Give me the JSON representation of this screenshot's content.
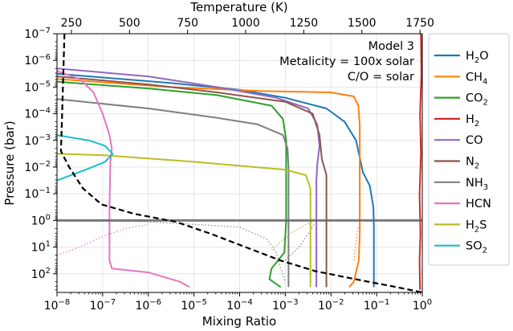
{
  "chart_data": {
    "type": "line",
    "annotation": {
      "lines": [
        "Model 3",
        "Metalicity = 100x solar",
        "C/O = solar"
      ]
    },
    "xlabel": "Mixing Ratio",
    "ylabel": "Pressure (bar)",
    "top_xlabel": "Temperature (K)",
    "xscale": "log",
    "yscale": "log",
    "yinverted": true,
    "xlim": [
      1e-08,
      1
    ],
    "ylim": [
      1e-07,
      500
    ],
    "top_xlim": [
      188,
      1760
    ],
    "x_ticks": [
      {
        "value": -8,
        "label": "10",
        "exp": "−8"
      },
      {
        "value": -7,
        "label": "10",
        "exp": "−7"
      },
      {
        "value": -6,
        "label": "10",
        "exp": "−6"
      },
      {
        "value": -5,
        "label": "10",
        "exp": "−5"
      },
      {
        "value": -4,
        "label": "10",
        "exp": "−4"
      },
      {
        "value": -3,
        "label": "10",
        "exp": "−3"
      },
      {
        "value": -2,
        "label": "10",
        "exp": "−2"
      },
      {
        "value": -1,
        "label": "10",
        "exp": "−1"
      },
      {
        "value": 0,
        "label": "10",
        "exp": "0"
      }
    ],
    "y_ticks": [
      {
        "value": -7,
        "label": "10",
        "exp": "−7"
      },
      {
        "value": -6,
        "label": "10",
        "exp": "−6"
      },
      {
        "value": -5,
        "label": "10",
        "exp": "−5"
      },
      {
        "value": -4,
        "label": "10",
        "exp": "−4"
      },
      {
        "value": -3,
        "label": "10",
        "exp": "−3"
      },
      {
        "value": -2,
        "label": "10",
        "exp": "−2"
      },
      {
        "value": -1,
        "label": "10",
        "exp": "−1"
      },
      {
        "value": 0,
        "label": "10",
        "exp": "0"
      },
      {
        "value": 1,
        "label": "10",
        "exp": "1"
      },
      {
        "value": 2,
        "label": "10",
        "exp": "2"
      }
    ],
    "top_ticks": [
      "250",
      "500",
      "750",
      "1000",
      "1250",
      "1500",
      "1750"
    ],
    "top_tick_values": [
      250,
      500,
      750,
      1000,
      1250,
      1500,
      1750
    ],
    "reference_line_pressure_log": 0,
    "tp_profile": {
      "name": "Temperature profile",
      "style": "dashed",
      "color": "#000000",
      "points": [
        [
          220,
          -7
        ],
        [
          210,
          -4
        ],
        [
          205,
          -2.6
        ],
        [
          240,
          -2
        ],
        [
          300,
          -1.2
        ],
        [
          380,
          -0.6
        ],
        [
          520,
          -0.25
        ],
        [
          700,
          0.05
        ],
        [
          850,
          0.5
        ],
        [
          1000,
          1
        ],
        [
          1150,
          1.5
        ],
        [
          1300,
          1.9
        ],
        [
          1500,
          2.25
        ],
        [
          1650,
          2.5
        ],
        [
          1760,
          2.7
        ]
      ]
    },
    "series": [
      {
        "name": "H₂O",
        "label_main": "H",
        "label_sub": "2",
        "label_end": "O",
        "color": "#1f77b4",
        "points": [
          [
            -8,
            -5.5
          ],
          [
            -5.5,
            -5.15
          ],
          [
            -4,
            -4.9
          ],
          [
            -3,
            -4.6
          ],
          [
            -2.1,
            -4.2
          ],
          [
            -1.7,
            -3.7
          ],
          [
            -1.45,
            -3
          ],
          [
            -1.3,
            -1.8
          ],
          [
            -1.15,
            -1.3
          ],
          [
            -1.07,
            -0.5
          ],
          [
            -1.06,
            0.2
          ],
          [
            -1.06,
            2.5
          ]
        ]
      },
      {
        "name": "CH₄",
        "label_main": "CH",
        "label_sub": "4",
        "label_end": "",
        "color": "#ff7f0e",
        "points": [
          [
            -8,
            -5.3
          ],
          [
            -5.5,
            -5
          ],
          [
            -3.5,
            -4.85
          ],
          [
            -2,
            -4.8
          ],
          [
            -1.5,
            -4.65
          ],
          [
            -1.4,
            -4.3
          ],
          [
            -1.37,
            -3.6
          ],
          [
            -1.37,
            0.5
          ],
          [
            -1.39,
            1.5
          ],
          [
            -1.5,
            2.3
          ],
          [
            -1.6,
            2.5
          ]
        ]
      },
      {
        "name": "CO₂",
        "label_main": "CO",
        "label_sub": "2",
        "label_end": "",
        "color": "#2ca02c",
        "points": [
          [
            -8,
            -5.2
          ],
          [
            -6,
            -4.95
          ],
          [
            -4.5,
            -4.7
          ],
          [
            -3.3,
            -4.3
          ],
          [
            -3.05,
            -3.8
          ],
          [
            -2.98,
            -3
          ],
          [
            -2.98,
            0
          ],
          [
            -3.02,
            1.2
          ],
          [
            -3.3,
            1.8
          ],
          [
            -3.35,
            2.2
          ],
          [
            -3.1,
            2.5
          ]
        ]
      },
      {
        "name": "H₂",
        "label_main": "H",
        "label_sub": "2",
        "label_end": "",
        "color": "#d62728",
        "points": [
          [
            -0.03,
            -7
          ],
          [
            -0.02,
            -5.5
          ],
          [
            -0.05,
            -4
          ],
          [
            -0.03,
            -2.5
          ],
          [
            -0.06,
            -1
          ],
          [
            -0.04,
            0.5
          ],
          [
            -0.06,
            1.5
          ],
          [
            -0.05,
            2.6
          ]
        ]
      },
      {
        "name": "CO",
        "label_main": "CO",
        "label_sub": "",
        "label_end": "",
        "color": "#9467bd",
        "points": [
          [
            -8,
            -5.7
          ],
          [
            -6,
            -5.4
          ],
          [
            -4.5,
            -5
          ],
          [
            -3.2,
            -4.6
          ],
          [
            -2.5,
            -4.2
          ],
          [
            -2.3,
            -3.6
          ],
          [
            -2.25,
            -2.8
          ],
          [
            -2.3,
            -2.1
          ],
          [
            -2.32,
            -1.5
          ],
          [
            -2.32,
            2.5
          ]
        ]
      },
      {
        "name": "N₂",
        "label_main": "N",
        "label_sub": "2",
        "label_end": "",
        "color": "#8c564b",
        "points": [
          [
            -8,
            -5.4
          ],
          [
            -6,
            -5.1
          ],
          [
            -4.5,
            -4.8
          ],
          [
            -3,
            -4.45
          ],
          [
            -2.4,
            -4
          ],
          [
            -2.25,
            -3.2
          ],
          [
            -2.2,
            -2.3
          ],
          [
            -2.1,
            -1.7
          ],
          [
            -2.1,
            2.5
          ]
        ]
      },
      {
        "name": "NH₃",
        "label_main": "NH",
        "label_sub": "3",
        "label_end": "",
        "color": "#7f7f7f",
        "points": [
          [
            -8,
            -4.55
          ],
          [
            -6,
            -4.2
          ],
          [
            -4.5,
            -3.85
          ],
          [
            -3.6,
            -3.6
          ],
          [
            -3.05,
            -3.2
          ],
          [
            -2.95,
            -2.7
          ],
          [
            -2.93,
            -2
          ],
          [
            -2.93,
            2.5
          ]
        ]
      },
      {
        "name": "HCN",
        "label_main": "HCN",
        "label_sub": "",
        "label_end": "",
        "color": "#e377c2",
        "points": [
          [
            -8,
            -5.6
          ],
          [
            -7.5,
            -5.3
          ],
          [
            -7.2,
            -4.8
          ],
          [
            -7,
            -4
          ],
          [
            -6.85,
            -3.2
          ],
          [
            -6.8,
            -2.7
          ],
          [
            -6.83,
            -2.2
          ],
          [
            -6.85,
            -0.5
          ],
          [
            -6.85,
            1.5
          ],
          [
            -6.8,
            1.8
          ],
          [
            -6,
            1.95
          ],
          [
            -5.3,
            2.3
          ],
          [
            -5.1,
            2.5
          ]
        ]
      },
      {
        "name": "H₂S",
        "label_main": "H",
        "label_sub": "2",
        "label_end": "S",
        "color": "#bcbd22",
        "points": [
          [
            -8,
            -2.5
          ],
          [
            -7,
            -2.45
          ],
          [
            -5,
            -2.2
          ],
          [
            -3,
            -1.9
          ],
          [
            -2.55,
            -1.7
          ],
          [
            -2.45,
            -1.2
          ],
          [
            -2.45,
            2.5
          ]
        ]
      },
      {
        "name": "SO₂",
        "label_main": "SO",
        "label_sub": "2",
        "label_end": "",
        "color": "#17becf",
        "points": [
          [
            -8,
            -3.2
          ],
          [
            -7.3,
            -3
          ],
          [
            -6.95,
            -2.8
          ],
          [
            -6.78,
            -2.5
          ],
          [
            -6.95,
            -2.2
          ],
          [
            -7.3,
            -1.95
          ],
          [
            -8,
            -1.5
          ]
        ]
      }
    ],
    "dotted_series": [
      {
        "name": "HCN (dotted)",
        "color": "#e377c2",
        "points": [
          [
            -8,
            1.3
          ],
          [
            -7.5,
            1
          ],
          [
            -7,
            0.6
          ],
          [
            -6.5,
            0.3
          ],
          [
            -6,
            0.15
          ]
        ]
      },
      {
        "name": "NH₃ (dotted)",
        "color": "#7f7f7f",
        "points": [
          [
            -8,
            0
          ],
          [
            -6,
            0.05
          ],
          [
            -4,
            0.25
          ],
          [
            -3.4,
            0.7
          ],
          [
            -3.2,
            1.2
          ],
          [
            -3.1,
            1.8
          ],
          [
            -3,
            2.3
          ]
        ]
      },
      {
        "name": "H₂S (dotted)",
        "color": "#bcbd22",
        "points": [
          [
            -3.3,
            1.1
          ],
          [
            -3.1,
            0.8
          ],
          [
            -2.9,
            0.5
          ],
          [
            -2.6,
            0.2
          ],
          [
            -2.4,
            0.05
          ]
        ]
      },
      {
        "name": "CO (dotted)",
        "color": "#9467bd",
        "points": [
          [
            -3,
            1.5
          ],
          [
            -2.7,
            1
          ],
          [
            -2.5,
            0.5
          ],
          [
            -2.35,
            0.1
          ]
        ]
      },
      {
        "name": "CH₄ (dotted)",
        "color": "#ff7f0e",
        "points": [
          [
            -1.5,
            1.5
          ],
          [
            -1.45,
            0.8
          ],
          [
            -1.4,
            0.2
          ]
        ]
      }
    ]
  }
}
